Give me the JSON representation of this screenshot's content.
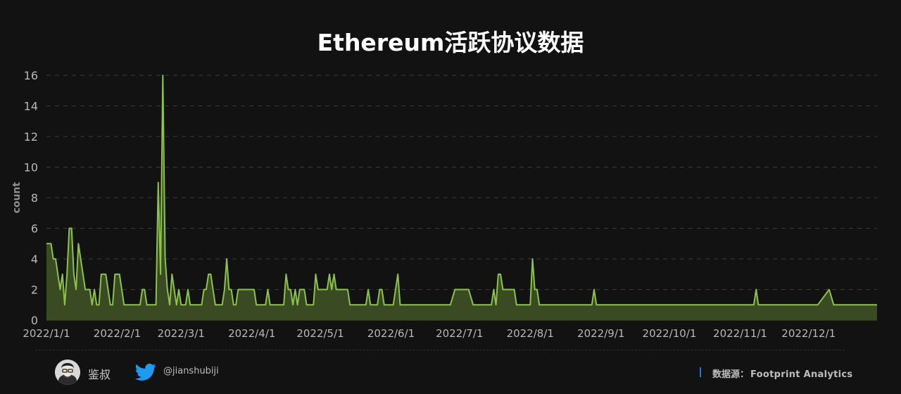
{
  "title": "Ethereum活跃协议数据",
  "footer": {
    "author": "鉴叔",
    "twitter_handle": "@jianshubiji",
    "source_label": "数据源：",
    "source_value": "Footprint  Analytics",
    "icons": [
      "avatar",
      "twitter-icon"
    ]
  },
  "chart_data": {
    "type": "area",
    "title": "Ethereum活跃协议数据",
    "xlabel": "",
    "ylabel": "count",
    "ylim": [
      0,
      16
    ],
    "yticks": [
      0,
      2,
      4,
      6,
      8,
      10,
      12,
      14,
      16
    ],
    "x_start": "2022-01-01",
    "x_end": "2022-12-31",
    "xticks": [
      "2022/1/1",
      "2022/2/1",
      "2022/3/1",
      "2022/4/1",
      "2022/5/1",
      "2022/6/1",
      "2022/7/1",
      "2022/8/1",
      "2022/9/1",
      "2022/10/1",
      "2022/11/1",
      "2022/12/1"
    ],
    "grid": true,
    "legend": "none",
    "colors": {
      "line": "#8bc34a",
      "fill": "#3a4a22",
      "grid": "#3a3a3a",
      "background": "#121212"
    },
    "series": [
      {
        "points": [
          [
            "2022-01-01",
            5
          ],
          [
            "2022-01-03",
            5
          ],
          [
            "2022-01-04",
            4
          ],
          [
            "2022-01-05",
            4
          ],
          [
            "2022-01-06",
            3
          ],
          [
            "2022-01-07",
            2
          ],
          [
            "2022-01-08",
            3
          ],
          [
            "2022-01-09",
            1
          ],
          [
            "2022-01-10",
            3
          ],
          [
            "2022-01-11",
            6
          ],
          [
            "2022-01-12",
            6
          ],
          [
            "2022-01-13",
            3
          ],
          [
            "2022-01-14",
            2
          ],
          [
            "2022-01-15",
            5
          ],
          [
            "2022-01-16",
            4
          ],
          [
            "2022-01-17",
            3
          ],
          [
            "2022-01-18",
            2
          ],
          [
            "2022-01-20",
            2
          ],
          [
            "2022-01-21",
            1
          ],
          [
            "2022-01-22",
            2
          ],
          [
            "2022-01-23",
            1
          ],
          [
            "2022-01-24",
            1
          ],
          [
            "2022-01-25",
            3
          ],
          [
            "2022-01-27",
            3
          ],
          [
            "2022-01-28",
            2
          ],
          [
            "2022-01-29",
            1
          ],
          [
            "2022-01-30",
            1
          ],
          [
            "2022-01-31",
            3
          ],
          [
            "2022-02-02",
            3
          ],
          [
            "2022-02-03",
            2
          ],
          [
            "2022-02-04",
            1
          ],
          [
            "2022-02-11",
            1
          ],
          [
            "2022-02-12",
            2
          ],
          [
            "2022-02-13",
            2
          ],
          [
            "2022-02-14",
            1
          ],
          [
            "2022-02-18",
            1
          ],
          [
            "2022-02-19",
            9
          ],
          [
            "2022-02-20",
            3
          ],
          [
            "2022-02-21",
            16
          ],
          [
            "2022-02-22",
            4
          ],
          [
            "2022-02-23",
            2
          ],
          [
            "2022-02-24",
            1
          ],
          [
            "2022-02-25",
            3
          ],
          [
            "2022-02-26",
            2
          ],
          [
            "2022-02-27",
            1
          ],
          [
            "2022-02-28",
            2
          ],
          [
            "2022-03-01",
            1
          ],
          [
            "2022-03-03",
            1
          ],
          [
            "2022-03-04",
            2
          ],
          [
            "2022-03-05",
            1
          ],
          [
            "2022-03-10",
            1
          ],
          [
            "2022-03-11",
            2
          ],
          [
            "2022-03-12",
            2
          ],
          [
            "2022-03-13",
            3
          ],
          [
            "2022-03-14",
            3
          ],
          [
            "2022-03-15",
            2
          ],
          [
            "2022-03-16",
            1
          ],
          [
            "2022-03-19",
            1
          ],
          [
            "2022-03-20",
            2
          ],
          [
            "2022-03-21",
            4
          ],
          [
            "2022-03-22",
            2
          ],
          [
            "2022-03-23",
            2
          ],
          [
            "2022-03-24",
            1
          ],
          [
            "2022-03-25",
            1
          ],
          [
            "2022-03-26",
            2
          ],
          [
            "2022-04-02",
            2
          ],
          [
            "2022-04-03",
            1
          ],
          [
            "2022-04-07",
            1
          ],
          [
            "2022-04-08",
            2
          ],
          [
            "2022-04-09",
            1
          ],
          [
            "2022-04-15",
            1
          ],
          [
            "2022-04-16",
            3
          ],
          [
            "2022-04-17",
            2
          ],
          [
            "2022-04-18",
            2
          ],
          [
            "2022-04-19",
            1
          ],
          [
            "2022-04-20",
            2
          ],
          [
            "2022-04-21",
            1
          ],
          [
            "2022-04-22",
            2
          ],
          [
            "2022-04-24",
            2
          ],
          [
            "2022-04-25",
            1
          ],
          [
            "2022-04-28",
            1
          ],
          [
            "2022-04-29",
            3
          ],
          [
            "2022-04-30",
            2
          ],
          [
            "2022-05-04",
            2
          ],
          [
            "2022-05-05",
            3
          ],
          [
            "2022-05-06",
            2
          ],
          [
            "2022-05-07",
            3
          ],
          [
            "2022-05-08",
            2
          ],
          [
            "2022-05-13",
            2
          ],
          [
            "2022-05-14",
            1
          ],
          [
            "2022-05-21",
            1
          ],
          [
            "2022-05-22",
            2
          ],
          [
            "2022-05-23",
            1
          ],
          [
            "2022-05-26",
            1
          ],
          [
            "2022-05-27",
            2
          ],
          [
            "2022-05-28",
            2
          ],
          [
            "2022-05-29",
            1
          ],
          [
            "2022-06-02",
            1
          ],
          [
            "2022-06-04",
            3
          ],
          [
            "2022-06-05",
            1
          ],
          [
            "2022-06-27",
            1
          ],
          [
            "2022-06-29",
            2
          ],
          [
            "2022-07-05",
            2
          ],
          [
            "2022-07-07",
            1
          ],
          [
            "2022-07-15",
            1
          ],
          [
            "2022-07-16",
            2
          ],
          [
            "2022-07-17",
            1
          ],
          [
            "2022-07-18",
            3
          ],
          [
            "2022-07-19",
            3
          ],
          [
            "2022-07-20",
            2
          ],
          [
            "2022-07-25",
            2
          ],
          [
            "2022-07-26",
            1
          ],
          [
            "2022-08-01",
            1
          ],
          [
            "2022-08-02",
            4
          ],
          [
            "2022-08-03",
            2
          ],
          [
            "2022-08-04",
            2
          ],
          [
            "2022-08-05",
            1
          ],
          [
            "2022-08-28",
            1
          ],
          [
            "2022-08-29",
            2
          ],
          [
            "2022-08-30",
            1
          ],
          [
            "2022-11-07",
            1
          ],
          [
            "2022-11-08",
            2
          ],
          [
            "2022-11-09",
            1
          ],
          [
            "2022-12-05",
            1
          ],
          [
            "2022-12-10",
            2
          ],
          [
            "2022-12-12",
            1
          ],
          [
            "2022-12-31",
            1
          ]
        ]
      }
    ]
  }
}
